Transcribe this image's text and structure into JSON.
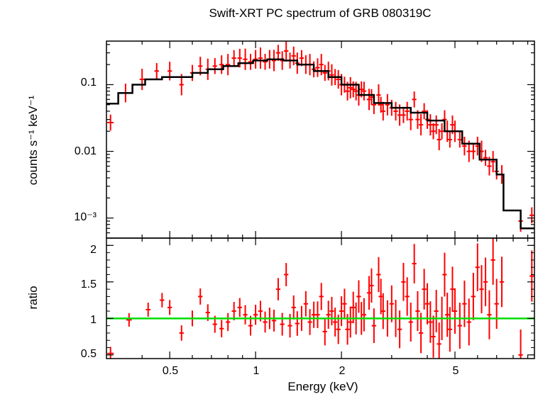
{
  "chart_data": [
    {
      "type": "scatter",
      "title": "Swift-XRT PC spectrum of GRB 080319C",
      "xlabel": "Energy (keV)",
      "ylabel": "counts s⁻¹ keV⁻¹",
      "xscale": "log",
      "yscale": "log",
      "xlim": [
        0.3,
        9.5
      ],
      "ylim": [
        0.0005,
        0.45
      ],
      "ytick_labels": [
        {
          "value": 0.1,
          "label": "0.1"
        },
        {
          "value": 0.01,
          "label": "0.01"
        },
        {
          "value": 0.001,
          "label": "10⁻³"
        }
      ],
      "series": [
        {
          "kind": "data_errorbars",
          "color": "#ff0000",
          "points": [
            [
              0.31,
              0.027
            ],
            [
              0.35,
              0.075
            ],
            [
              0.4,
              0.12
            ],
            [
              0.45,
              0.16
            ],
            [
              0.5,
              0.16
            ],
            [
              0.55,
              0.1
            ],
            [
              0.6,
              0.15
            ],
            [
              0.64,
              0.19
            ],
            [
              0.68,
              0.17
            ],
            [
              0.72,
              0.19
            ],
            [
              0.76,
              0.2
            ],
            [
              0.8,
              0.2
            ],
            [
              0.84,
              0.25
            ],
            [
              0.88,
              0.25
            ],
            [
              0.92,
              0.24
            ],
            [
              0.96,
              0.22
            ],
            [
              1.0,
              0.24
            ],
            [
              1.04,
              0.25
            ],
            [
              1.08,
              0.22
            ],
            [
              1.12,
              0.24
            ],
            [
              1.16,
              0.23
            ],
            [
              1.2,
              0.3
            ],
            [
              1.24,
              0.23
            ],
            [
              1.28,
              0.32
            ],
            [
              1.32,
              0.23
            ],
            [
              1.36,
              0.27
            ],
            [
              1.4,
              0.21
            ],
            [
              1.45,
              0.25
            ],
            [
              1.5,
              0.2
            ],
            [
              1.55,
              0.2
            ],
            [
              1.6,
              0.17
            ],
            [
              1.65,
              0.18
            ],
            [
              1.7,
              0.2
            ],
            [
              1.75,
              0.15
            ],
            [
              1.8,
              0.16
            ],
            [
              1.85,
              0.14
            ],
            [
              1.9,
              0.13
            ],
            [
              1.95,
              0.12
            ],
            [
              2.0,
              0.1
            ],
            [
              2.05,
              0.1
            ],
            [
              2.1,
              0.08
            ],
            [
              2.15,
              0.09
            ],
            [
              2.2,
              0.085
            ],
            [
              2.25,
              0.08
            ],
            [
              2.3,
              0.07
            ],
            [
              2.35,
              0.085
            ],
            [
              2.4,
              0.08
            ],
            [
              2.5,
              0.06
            ],
            [
              2.55,
              0.065
            ],
            [
              2.6,
              0.05
            ],
            [
              2.7,
              0.07
            ],
            [
              2.75,
              0.05
            ],
            [
              2.8,
              0.04
            ],
            [
              2.9,
              0.05
            ],
            [
              3.0,
              0.045
            ],
            [
              3.1,
              0.04
            ],
            [
              3.2,
              0.035
            ],
            [
              3.3,
              0.035
            ],
            [
              3.4,
              0.04
            ],
            [
              3.5,
              0.03
            ],
            [
              3.6,
              0.06
            ],
            [
              3.7,
              0.03
            ],
            [
              3.8,
              0.025
            ],
            [
              3.9,
              0.04
            ],
            [
              4.0,
              0.03
            ],
            [
              4.1,
              0.025
            ],
            [
              4.2,
              0.02
            ],
            [
              4.3,
              0.025
            ],
            [
              4.4,
              0.015
            ],
            [
              4.5,
              0.02
            ],
            [
              4.6,
              0.03
            ],
            [
              4.7,
              0.02
            ],
            [
              4.8,
              0.015
            ],
            [
              4.9,
              0.025
            ],
            [
              5.0,
              0.02
            ],
            [
              5.2,
              0.015
            ],
            [
              5.4,
              0.012
            ],
            [
              5.6,
              0.01
            ],
            [
              5.8,
              0.01
            ],
            [
              6.0,
              0.012
            ],
            [
              6.2,
              0.01
            ],
            [
              6.4,
              0.008
            ],
            [
              6.6,
              0.006
            ],
            [
              6.8,
              0.007
            ],
            [
              7.0,
              0.005
            ],
            [
              7.3,
              0.0045
            ],
            [
              8.5,
              0.0009
            ],
            [
              9.3,
              0.0011
            ]
          ]
        },
        {
          "kind": "model_step",
          "color": "#000000",
          "steps": [
            [
              0.3,
              0.33,
              0.052
            ],
            [
              0.33,
              0.37,
              0.075
            ],
            [
              0.37,
              0.41,
              0.1
            ],
            [
              0.41,
              0.47,
              0.12
            ],
            [
              0.47,
              0.53,
              0.13
            ],
            [
              0.53,
              0.6,
              0.13
            ],
            [
              0.6,
              0.68,
              0.15
            ],
            [
              0.68,
              0.77,
              0.17
            ],
            [
              0.77,
              0.87,
              0.19
            ],
            [
              0.87,
              0.98,
              0.21
            ],
            [
              0.98,
              1.1,
              0.23
            ],
            [
              1.1,
              1.25,
              0.24
            ],
            [
              1.25,
              1.4,
              0.23
            ],
            [
              1.4,
              1.6,
              0.2
            ],
            [
              1.6,
              1.8,
              0.16
            ],
            [
              1.8,
              2.0,
              0.13
            ],
            [
              2.0,
              2.3,
              0.1
            ],
            [
              2.3,
              2.6,
              0.07
            ],
            [
              2.6,
              3.0,
              0.053
            ],
            [
              3.0,
              3.5,
              0.045
            ],
            [
              3.5,
              4.0,
              0.038
            ],
            [
              4.0,
              4.6,
              0.029
            ],
            [
              4.6,
              5.3,
              0.02
            ],
            [
              5.3,
              6.1,
              0.013
            ],
            [
              6.1,
              7.0,
              0.0075
            ],
            [
              7.0,
              7.4,
              0.0045
            ],
            [
              7.4,
              8.5,
              0.0013
            ],
            [
              8.5,
              9.5,
              0.0007
            ]
          ]
        }
      ]
    },
    {
      "type": "scatter",
      "xlabel": "Energy (keV)",
      "ylabel": "ratio",
      "xscale": "log",
      "xlim": [
        0.3,
        9.5
      ],
      "ylim": [
        0.45,
        2.1
      ],
      "x_tick_labels": [
        {
          "value": 0.5,
          "label": "0.5"
        },
        {
          "value": 1,
          "label": "1"
        },
        {
          "value": 2,
          "label": "2"
        },
        {
          "value": 5,
          "label": "5"
        }
      ],
      "y_tick_labels": [
        {
          "value": 0.5,
          "label": "0.5"
        },
        {
          "value": 1,
          "label": "1"
        },
        {
          "value": 1.5,
          "label": "1.5"
        },
        {
          "value": 2,
          "label": "2"
        }
      ],
      "reference_line": {
        "value": 1,
        "color": "#00dd00"
      },
      "series": [
        {
          "kind": "ratio_errorbars",
          "color": "#ff0000",
          "points": [
            [
              0.31,
              0.52
            ],
            [
              0.36,
              0.98
            ],
            [
              0.42,
              1.12
            ],
            [
              0.47,
              1.25
            ],
            [
              0.5,
              1.15
            ],
            [
              0.55,
              0.8
            ],
            [
              0.6,
              1.0
            ],
            [
              0.64,
              1.3
            ],
            [
              0.68,
              1.08
            ],
            [
              0.72,
              0.92
            ],
            [
              0.76,
              0.86
            ],
            [
              0.8,
              0.95
            ],
            [
              0.84,
              1.1
            ],
            [
              0.88,
              1.15
            ],
            [
              0.92,
              1.05
            ],
            [
              0.96,
              0.9
            ],
            [
              1.0,
              1.05
            ],
            [
              1.04,
              1.1
            ],
            [
              1.08,
              0.95
            ],
            [
              1.12,
              1.0
            ],
            [
              1.16,
              0.97
            ],
            [
              1.2,
              1.4
            ],
            [
              1.24,
              0.92
            ],
            [
              1.28,
              1.6
            ],
            [
              1.32,
              0.9
            ],
            [
              1.36,
              1.15
            ],
            [
              1.4,
              0.93
            ],
            [
              1.45,
              1.0
            ],
            [
              1.5,
              1.2
            ],
            [
              1.55,
              0.95
            ],
            [
              1.6,
              1.05
            ],
            [
              1.65,
              1.05
            ],
            [
              1.7,
              1.3
            ],
            [
              1.75,
              0.82
            ],
            [
              1.8,
              1.05
            ],
            [
              1.85,
              1.1
            ],
            [
              1.9,
              0.95
            ],
            [
              1.95,
              0.85
            ],
            [
              2.0,
              1.1
            ],
            [
              2.05,
              1.2
            ],
            [
              2.1,
              0.85
            ],
            [
              2.15,
              0.95
            ],
            [
              2.2,
              1.15
            ],
            [
              2.25,
              1.0
            ],
            [
              2.3,
              1.3
            ],
            [
              2.35,
              1.0
            ],
            [
              2.4,
              1.05
            ],
            [
              2.5,
              1.35
            ],
            [
              2.55,
              1.45
            ],
            [
              2.6,
              0.9
            ],
            [
              2.7,
              1.6
            ],
            [
              2.75,
              1.3
            ],
            [
              2.8,
              1.1
            ],
            [
              2.9,
              1.0
            ],
            [
              3.0,
              1.2
            ],
            [
              3.1,
              1.0
            ],
            [
              3.2,
              0.85
            ],
            [
              3.3,
              1.5
            ],
            [
              3.4,
              1.3
            ],
            [
              3.5,
              0.95
            ],
            [
              3.6,
              1.75
            ],
            [
              3.7,
              1.1
            ],
            [
              3.8,
              0.8
            ],
            [
              3.9,
              1.4
            ],
            [
              4.0,
              1.2
            ],
            [
              4.1,
              0.95
            ],
            [
              4.2,
              0.75
            ],
            [
              4.3,
              1.1
            ],
            [
              4.4,
              0.65
            ],
            [
              4.5,
              1.0
            ],
            [
              4.6,
              1.6
            ],
            [
              4.7,
              1.05
            ],
            [
              4.8,
              0.85
            ],
            [
              4.9,
              1.4
            ],
            [
              5.0,
              1.1
            ],
            [
              5.2,
              0.9
            ],
            [
              5.4,
              1.2
            ],
            [
              5.6,
              0.95
            ],
            [
              5.8,
              1.3
            ],
            [
              6.0,
              1.7
            ],
            [
              6.2,
              1.4
            ],
            [
              6.4,
              1.5
            ],
            [
              6.6,
              1.05
            ],
            [
              6.8,
              1.8
            ],
            [
              7.0,
              1.2
            ],
            [
              7.3,
              1.5
            ],
            [
              8.5,
              0.5
            ],
            [
              9.3,
              1.58
            ]
          ]
        }
      ]
    }
  ]
}
